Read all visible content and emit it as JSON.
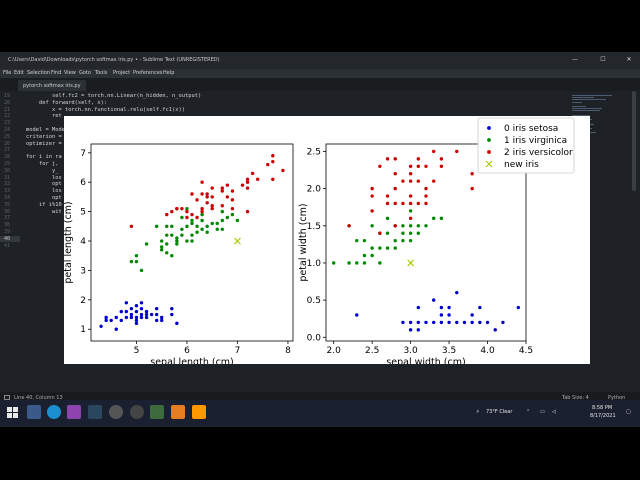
{
  "window": {
    "title": "C:\\Users\\David\\Downloads\\pytorch softmax iris.py • - Sublime Text (UNREGISTERED)",
    "minimize": "—",
    "maximize": "☐",
    "close": "✕"
  },
  "menu": [
    "File",
    "Edit",
    "Selection",
    "Find",
    "View",
    "Goto",
    "Tools",
    "Project",
    "Preferences",
    "Help"
  ],
  "tab": {
    "label": "pytorch softmax iris.py"
  },
  "editor": {
    "line_numbers": [
      "19",
      "20",
      "21",
      "22",
      "23",
      "24",
      "25",
      "26",
      "27",
      "28",
      "29",
      "30",
      "31",
      "32",
      "33",
      "34",
      "35",
      "36",
      "37",
      "38",
      "39",
      "40",
      "41"
    ],
    "current_line": "40",
    "lines": [
      {
        "text": "        self.fc2 = torch.nn.Linear(n_hidden, n_output)"
      },
      {
        "text": "    def forward(self, x):"
      },
      {
        "text": "        x = torch.nn.functional.relu(self.fc1(x))"
      },
      {
        "text": "        ret"
      },
      {
        "text": ""
      },
      {
        "text": "model = Mode"
      },
      {
        "text": "criterion ="
      },
      {
        "text": "optimizer ="
      },
      {
        "text": ""
      },
      {
        "text": "for i in ra"
      },
      {
        "text": "    for j, "
      },
      {
        "text": "        y_"
      },
      {
        "text": "        los"
      },
      {
        "text": "        opt"
      },
      {
        "text": "        los"
      },
      {
        "text": "        opt"
      },
      {
        "text": "    if i%10"
      },
      {
        "text": "        wit"
      },
      {
        "text": ""
      },
      {
        "text": ""
      },
      {
        "text": ""
      },
      {
        "text": ""
      },
      {
        "text": ""
      }
    ]
  },
  "statusbar": {
    "position": "Line 40, Column 13",
    "tab_size": "Tab Size: 4",
    "syntax": "Python"
  },
  "taskbar": {
    "weather": "73°F  Clear",
    "time": "8:58 PM",
    "date": "8/17/2021"
  },
  "colors": {
    "setosa": "#0000cc",
    "virginica": "#008800",
    "versicolor": "#cc0000",
    "new_iris": "#aacc00"
  },
  "chart_data": [
    {
      "type": "scatter",
      "title": "",
      "xlabel": "sepal length (cm)",
      "ylabel": "petal length (cm)",
      "xlim": [
        4.1,
        8.1
      ],
      "ylim": [
        0.6,
        7.3
      ],
      "xticks": [
        5,
        6,
        7,
        8
      ],
      "yticks": [
        1,
        2,
        3,
        4,
        5,
        6,
        7
      ],
      "grid": false,
      "series": [
        {
          "name": "0 iris setosa",
          "color": "#0000cc",
          "marker": "dot",
          "points": [
            [
              4.3,
              1.1
            ],
            [
              4.4,
              1.3
            ],
            [
              4.4,
              1.4
            ],
            [
              4.5,
              1.3
            ],
            [
              4.6,
              1.0
            ],
            [
              4.6,
              1.4
            ],
            [
              4.7,
              1.3
            ],
            [
              4.8,
              1.6
            ],
            [
              4.8,
              1.4
            ],
            [
              4.9,
              1.4
            ],
            [
              4.9,
              1.5
            ],
            [
              5.0,
              1.6
            ],
            [
              5.0,
              1.4
            ],
            [
              5.0,
              1.2
            ],
            [
              5.1,
              1.5
            ],
            [
              5.1,
              1.4
            ],
            [
              5.1,
              1.7
            ],
            [
              5.1,
              1.9
            ],
            [
              5.2,
              1.5
            ],
            [
              5.2,
              1.4
            ],
            [
              5.3,
              1.5
            ],
            [
              5.4,
              1.7
            ],
            [
              5.4,
              1.5
            ],
            [
              5.4,
              1.3
            ],
            [
              5.5,
              1.4
            ],
            [
              5.5,
              1.3
            ],
            [
              5.7,
              1.5
            ],
            [
              5.7,
              1.7
            ],
            [
              5.8,
              1.2
            ],
            [
              4.7,
              1.6
            ],
            [
              4.9,
              1.7
            ],
            [
              5.0,
              1.3
            ],
            [
              5.2,
              1.6
            ],
            [
              5.0,
              1.8
            ],
            [
              4.8,
              1.9
            ]
          ]
        },
        {
          "name": "1 iris virginica",
          "color": "#008800",
          "marker": "dot",
          "points": [
            [
              4.9,
              3.3
            ],
            [
              5.0,
              3.3
            ],
            [
              5.0,
              3.5
            ],
            [
              5.1,
              3.0
            ],
            [
              5.2,
              3.9
            ],
            [
              5.4,
              4.5
            ],
            [
              5.5,
              4.0
            ],
            [
              5.5,
              3.8
            ],
            [
              5.5,
              3.7
            ],
            [
              5.6,
              3.6
            ],
            [
              5.6,
              3.9
            ],
            [
              5.6,
              4.2
            ],
            [
              5.6,
              4.5
            ],
            [
              5.7,
              3.5
            ],
            [
              5.7,
              4.2
            ],
            [
              5.7,
              4.5
            ],
            [
              5.8,
              3.9
            ],
            [
              5.8,
              4.0
            ],
            [
              5.8,
              4.1
            ],
            [
              5.9,
              4.2
            ],
            [
              5.9,
              4.8
            ],
            [
              6.0,
              4.0
            ],
            [
              6.0,
              4.5
            ],
            [
              6.0,
              5.1
            ],
            [
              6.1,
              4.0
            ],
            [
              6.1,
              4.6
            ],
            [
              6.1,
              4.7
            ],
            [
              6.2,
              4.3
            ],
            [
              6.2,
              4.5
            ],
            [
              6.3,
              4.4
            ],
            [
              6.3,
              4.7
            ],
            [
              6.3,
              4.9
            ],
            [
              6.4,
              4.3
            ],
            [
              6.4,
              4.5
            ],
            [
              6.5,
              4.6
            ],
            [
              6.6,
              4.4
            ],
            [
              6.6,
              4.6
            ],
            [
              6.7,
              4.4
            ],
            [
              6.7,
              4.7
            ],
            [
              6.7,
              5.0
            ],
            [
              6.8,
              4.8
            ],
            [
              6.9,
              4.9
            ],
            [
              7.0,
              4.7
            ],
            [
              5.9,
              4.4
            ],
            [
              6.1,
              4.2
            ]
          ]
        },
        {
          "name": "2 iris versicolor",
          "color": "#cc0000",
          "marker": "dot",
          "points": [
            [
              4.9,
              4.5
            ],
            [
              5.6,
              4.9
            ],
            [
              5.7,
              5.0
            ],
            [
              5.8,
              5.1
            ],
            [
              5.8,
              5.1
            ],
            [
              5.9,
              5.1
            ],
            [
              6.0,
              4.8
            ],
            [
              6.0,
              5.0
            ],
            [
              6.1,
              4.9
            ],
            [
              6.1,
              5.6
            ],
            [
              6.2,
              4.8
            ],
            [
              6.2,
              5.4
            ],
            [
              6.3,
              5.0
            ],
            [
              6.3,
              5.1
            ],
            [
              6.3,
              5.6
            ],
            [
              6.3,
              6.0
            ],
            [
              6.4,
              5.3
            ],
            [
              6.4,
              5.5
            ],
            [
              6.4,
              5.6
            ],
            [
              6.5,
              5.1
            ],
            [
              6.5,
              5.2
            ],
            [
              6.5,
              5.5
            ],
            [
              6.5,
              5.8
            ],
            [
              6.7,
              5.2
            ],
            [
              6.7,
              5.7
            ],
            [
              6.7,
              5.8
            ],
            [
              6.8,
              5.5
            ],
            [
              6.8,
              5.9
            ],
            [
              6.9,
              5.1
            ],
            [
              6.9,
              5.4
            ],
            [
              6.9,
              5.7
            ],
            [
              7.1,
              5.9
            ],
            [
              7.2,
              5.8
            ],
            [
              7.2,
              6.0
            ],
            [
              7.2,
              6.1
            ],
            [
              7.3,
              6.3
            ],
            [
              7.4,
              6.1
            ],
            [
              7.6,
              6.6
            ],
            [
              7.7,
              6.1
            ],
            [
              7.7,
              6.7
            ],
            [
              7.7,
              6.9
            ],
            [
              7.9,
              6.4
            ],
            [
              7.2,
              5.0
            ]
          ]
        },
        {
          "name": "new iris",
          "color": "#aacc00",
          "marker": "x",
          "points": [
            [
              7.0,
              4.0
            ]
          ]
        }
      ]
    },
    {
      "type": "scatter",
      "title": "",
      "xlabel": "sepal width (cm)",
      "ylabel": "petal width (cm)",
      "xlim": [
        1.9,
        4.5
      ],
      "ylim": [
        -0.05,
        2.6
      ],
      "xticks": [
        2.0,
        2.5,
        3.0,
        3.5,
        4.0,
        4.5
      ],
      "yticks": [
        0.0,
        0.5,
        1.0,
        1.5,
        2.0,
        2.5
      ],
      "grid": false,
      "series": [
        {
          "name": "0 iris setosa",
          "color": "#0000cc",
          "marker": "dot",
          "points": [
            [
              2.3,
              0.3
            ],
            [
              2.9,
              0.2
            ],
            [
              3.0,
              0.1
            ],
            [
              3.0,
              0.2
            ],
            [
              3.1,
              0.1
            ],
            [
              3.1,
              0.2
            ],
            [
              3.2,
              0.2
            ],
            [
              3.3,
              0.2
            ],
            [
              3.4,
              0.2
            ],
            [
              3.4,
              0.4
            ],
            [
              3.5,
              0.2
            ],
            [
              3.5,
              0.3
            ],
            [
              3.6,
              0.2
            ],
            [
              3.7,
              0.2
            ],
            [
              3.8,
              0.2
            ],
            [
              3.8,
              0.3
            ],
            [
              3.9,
              0.4
            ],
            [
              4.0,
              0.2
            ],
            [
              4.1,
              0.1
            ],
            [
              4.2,
              0.2
            ],
            [
              4.4,
              0.4
            ],
            [
              3.3,
              0.5
            ],
            [
              3.6,
              0.6
            ],
            [
              3.4,
              0.3
            ],
            [
              3.5,
              0.4
            ],
            [
              3.9,
              0.2
            ],
            [
              3.1,
              0.4
            ]
          ]
        },
        {
          "name": "1 iris virginica",
          "color": "#008800",
          "marker": "dot",
          "points": [
            [
              2.0,
              1.0
            ],
            [
              2.2,
              1.0
            ],
            [
              2.2,
              1.5
            ],
            [
              2.3,
              1.0
            ],
            [
              2.3,
              1.3
            ],
            [
              2.4,
              1.0
            ],
            [
              2.4,
              1.1
            ],
            [
              2.5,
              1.1
            ],
            [
              2.5,
              1.2
            ],
            [
              2.5,
              1.5
            ],
            [
              2.6,
              1.2
            ],
            [
              2.6,
              1.4
            ],
            [
              2.7,
              1.2
            ],
            [
              2.7,
              1.4
            ],
            [
              2.7,
              1.6
            ],
            [
              2.8,
              1.3
            ],
            [
              2.8,
              1.5
            ],
            [
              2.9,
              1.3
            ],
            [
              2.9,
              1.4
            ],
            [
              2.9,
              1.5
            ],
            [
              3.0,
              1.4
            ],
            [
              3.0,
              1.5
            ],
            [
              3.0,
              1.7
            ],
            [
              3.1,
              1.4
            ],
            [
              3.1,
              1.5
            ],
            [
              3.2,
              1.5
            ],
            [
              3.3,
              1.6
            ],
            [
              3.4,
              1.6
            ],
            [
              2.4,
              1.3
            ],
            [
              2.6,
              1.0
            ],
            [
              2.8,
              1.2
            ],
            [
              3.0,
              1.3
            ]
          ]
        },
        {
          "name": "2 iris versicolor",
          "color": "#cc0000",
          "marker": "dot",
          "points": [
            [
              2.2,
              1.5
            ],
            [
              2.5,
              1.7
            ],
            [
              2.5,
              1.9
            ],
            [
              2.5,
              2.0
            ],
            [
              2.6,
              1.4
            ],
            [
              2.6,
              2.3
            ],
            [
              2.7,
              1.8
            ],
            [
              2.7,
              1.9
            ],
            [
              2.8,
              1.5
            ],
            [
              2.8,
              1.8
            ],
            [
              2.8,
              2.0
            ],
            [
              2.8,
              2.2
            ],
            [
              2.8,
              2.4
            ],
            [
              2.9,
              1.8
            ],
            [
              3.0,
              1.6
            ],
            [
              3.0,
              1.8
            ],
            [
              3.0,
              2.1
            ],
            [
              3.0,
              2.3
            ],
            [
              3.0,
              2.2
            ],
            [
              3.1,
              1.8
            ],
            [
              3.1,
              2.1
            ],
            [
              3.1,
              2.3
            ],
            [
              3.1,
              2.4
            ],
            [
              3.2,
              1.8
            ],
            [
              3.2,
              2.0
            ],
            [
              3.2,
              2.3
            ],
            [
              3.3,
              2.1
            ],
            [
              3.3,
              2.5
            ],
            [
              3.4,
              2.4
            ],
            [
              3.6,
              2.5
            ],
            [
              3.8,
              2.0
            ],
            [
              3.8,
              2.2
            ],
            [
              2.7,
              2.4
            ],
            [
              2.9,
              2.1
            ],
            [
              3.0,
              1.9
            ],
            [
              3.2,
              1.9
            ],
            [
              3.4,
              2.3
            ]
          ]
        },
        {
          "name": "new iris",
          "color": "#aacc00",
          "marker": "x",
          "points": [
            [
              3.0,
              1.0
            ]
          ]
        }
      ]
    }
  ],
  "legend": {
    "placement": "upper-right",
    "entries": [
      "0 iris setosa",
      "1 iris virginica",
      "2 iris versicolor",
      "new iris"
    ]
  }
}
